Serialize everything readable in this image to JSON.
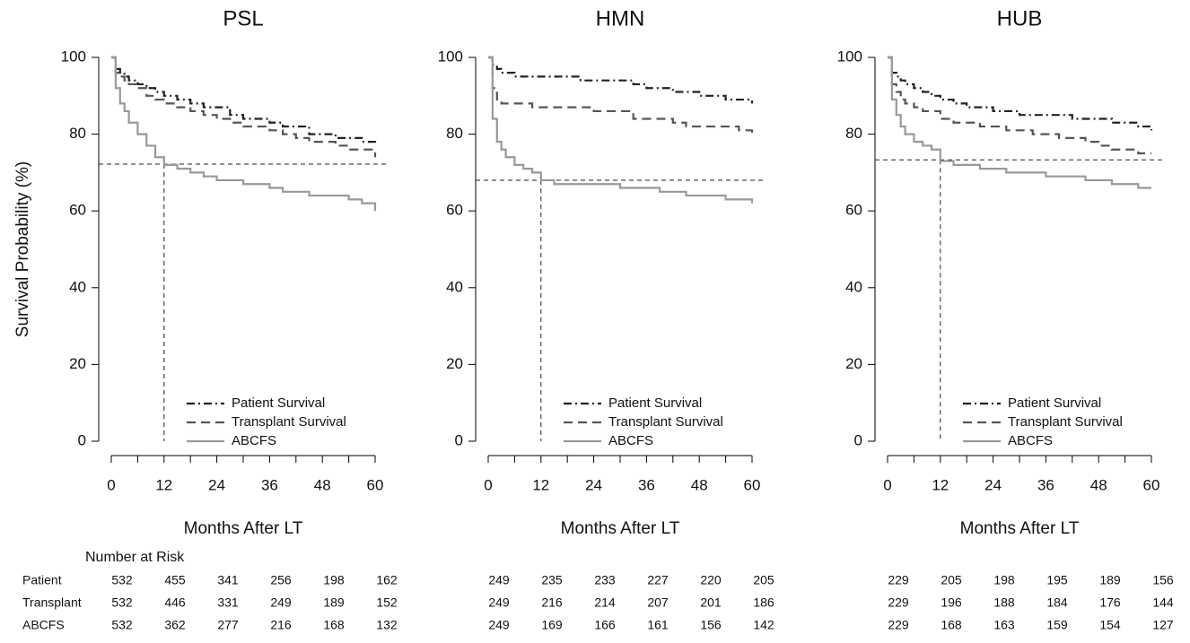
{
  "chart_data": [
    {
      "type": "line",
      "title": "PSL",
      "x_label": "Months After LT",
      "y_label": "Survival Probability (%)",
      "x": [
        0,
        1,
        2,
        3,
        4,
        6,
        8,
        10,
        12,
        15,
        18,
        21,
        24,
        27,
        30,
        33,
        36,
        39,
        42,
        45,
        48,
        51,
        54,
        57,
        60
      ],
      "series": [
        {
          "name": "Patient Survival",
          "color": "#222222",
          "line_style": "dashdot",
          "values": [
            100,
            97,
            96,
            95,
            94,
            93,
            92,
            91,
            90,
            89,
            88,
            87,
            87,
            85,
            84,
            84,
            83,
            82,
            82,
            80,
            80,
            79,
            79,
            78,
            77
          ]
        },
        {
          "name": "Transplant Survival",
          "color": "#555555",
          "line_style": "dashed",
          "values": [
            100,
            96,
            95,
            94,
            93,
            92,
            90,
            89,
            88,
            87,
            86,
            85,
            84,
            83,
            82,
            82,
            81,
            80,
            79,
            78,
            78,
            77,
            76,
            76,
            74
          ]
        },
        {
          "name": "ABCFS",
          "color": "#999999",
          "line_style": "solid",
          "values": [
            100,
            92,
            88,
            86,
            83,
            80,
            77,
            74,
            72,
            71,
            70,
            69,
            68,
            68,
            67,
            67,
            66,
            65,
            65,
            64,
            64,
            64,
            63,
            62,
            60
          ]
        }
      ],
      "hline": 72.2,
      "vline": 12,
      "xlim": [
        0,
        60
      ],
      "ylim": [
        0,
        100
      ],
      "xticks": [
        0,
        12,
        24,
        36,
        48,
        60
      ],
      "minor_xticks": [
        6,
        18,
        30,
        42,
        54
      ],
      "yticks": [
        0,
        20,
        40,
        60,
        80,
        100
      ]
    },
    {
      "type": "line",
      "title": "HMN",
      "x_label": "Months After LT",
      "x": [
        0,
        1,
        2,
        3,
        4,
        6,
        8,
        10,
        12,
        15,
        18,
        21,
        24,
        27,
        30,
        33,
        36,
        39,
        42,
        45,
        48,
        51,
        54,
        57,
        60
      ],
      "series": [
        {
          "name": "Patient Survival",
          "color": "#222222",
          "line_style": "dashdot",
          "values": [
            100,
            98,
            97,
            96,
            96,
            95,
            95,
            95,
            95,
            95,
            95,
            94,
            94,
            94,
            94,
            93,
            92,
            92,
            91,
            91,
            90,
            90,
            89,
            89,
            88
          ]
        },
        {
          "name": "Transplant Survival",
          "color": "#555555",
          "line_style": "dashed",
          "values": [
            100,
            92,
            89,
            88,
            88,
            88,
            88,
            87,
            87,
            87,
            87,
            87,
            86,
            86,
            86,
            84,
            84,
            84,
            83,
            82,
            82,
            82,
            82,
            81,
            80
          ]
        },
        {
          "name": "ABCFS",
          "color": "#999999",
          "line_style": "solid",
          "values": [
            100,
            84,
            78,
            76,
            74,
            72,
            71,
            70,
            68,
            67,
            67,
            67,
            67,
            67,
            66,
            66,
            66,
            65,
            65,
            64,
            64,
            64,
            63,
            63,
            62
          ]
        }
      ],
      "hline": 68,
      "vline": 12,
      "xlim": [
        0,
        60
      ],
      "ylim": [
        0,
        100
      ],
      "xticks": [
        0,
        12,
        24,
        36,
        48,
        60
      ],
      "minor_xticks": [
        6,
        18,
        30,
        42,
        54
      ],
      "yticks": [
        0,
        20,
        40,
        60,
        80,
        100
      ]
    },
    {
      "type": "line",
      "title": "HUB",
      "x_label": "Months After LT",
      "x": [
        0,
        1,
        2,
        3,
        4,
        6,
        8,
        10,
        12,
        15,
        18,
        21,
        24,
        27,
        30,
        33,
        36,
        39,
        42,
        45,
        48,
        51,
        54,
        57,
        60
      ],
      "series": [
        {
          "name": "Patient Survival",
          "color": "#222222",
          "line_style": "dashdot",
          "values": [
            100,
            96,
            95,
            94,
            93,
            92,
            91,
            90,
            89,
            88,
            87,
            87,
            86,
            86,
            85,
            85,
            85,
            85,
            84,
            84,
            84,
            83,
            83,
            82,
            81
          ]
        },
        {
          "name": "Transplant Survival",
          "color": "#555555",
          "line_style": "dashed",
          "values": [
            100,
            93,
            91,
            89,
            88,
            87,
            86,
            86,
            84,
            83,
            83,
            82,
            82,
            81,
            81,
            80,
            80,
            79,
            79,
            78,
            77,
            76,
            76,
            75,
            75
          ]
        },
        {
          "name": "ABCFS",
          "color": "#999999",
          "line_style": "solid",
          "values": [
            100,
            89,
            85,
            82,
            80,
            78,
            77,
            76,
            73,
            72,
            72,
            71,
            71,
            70,
            70,
            70,
            69,
            69,
            69,
            68,
            68,
            67,
            67,
            66,
            66
          ]
        }
      ],
      "hline": 73.3,
      "vline": 12,
      "xlim": [
        0,
        60
      ],
      "ylim": [
        0,
        100
      ],
      "xticks": [
        0,
        12,
        24,
        36,
        48,
        60
      ],
      "minor_xticks": [
        6,
        18,
        30,
        42,
        54
      ],
      "yticks": [
        0,
        20,
        40,
        60,
        80,
        100
      ]
    }
  ],
  "risk_table": {
    "title": "Number at Risk",
    "row_labels": [
      "Patient",
      "Transplant",
      "ABCFS"
    ],
    "panels": [
      [
        [
          532,
          455,
          341,
          256,
          198,
          162
        ],
        [
          532,
          446,
          331,
          249,
          189,
          152
        ],
        [
          532,
          362,
          277,
          216,
          168,
          132
        ]
      ],
      [
        [
          249,
          235,
          233,
          227,
          220,
          205
        ],
        [
          249,
          216,
          214,
          207,
          201,
          186
        ],
        [
          249,
          169,
          166,
          161,
          156,
          142
        ]
      ],
      [
        [
          229,
          205,
          198,
          195,
          189,
          156
        ],
        [
          229,
          196,
          188,
          184,
          176,
          144
        ],
        [
          229,
          168,
          163,
          159,
          154,
          127
        ]
      ]
    ]
  }
}
